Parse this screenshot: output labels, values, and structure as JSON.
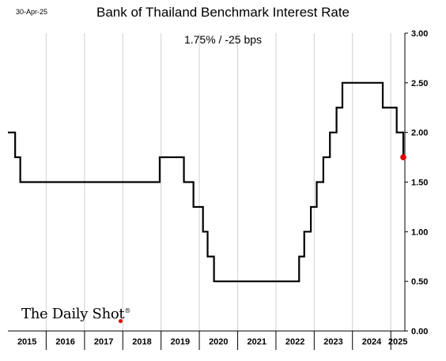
{
  "date_label": "30-Apr-25",
  "logo_text": "The Daily Shot",
  "logo_mark": "®",
  "colors": {
    "line": "#000000",
    "last_point": "#e00000",
    "grid": "#d0d0d0"
  },
  "chart_data": {
    "type": "line",
    "title": "Bank of Thailand Benchmark Interest Rate",
    "subtitle": "1.75%  /  -25 bps",
    "x_start": "2015-01-01",
    "x_end": "2025-05-15",
    "ylim": [
      0,
      3
    ],
    "yticks": [
      "0.00",
      "0.50",
      "1.00",
      "1.50",
      "2.00",
      "2.50",
      "3.00"
    ],
    "ytick_values": [
      0,
      0.5,
      1,
      1.5,
      2,
      2.5,
      3
    ],
    "y_axis_side": "right",
    "grid": "vertical at year boundaries",
    "year_labels": [
      "2015",
      "2016",
      "2017",
      "2018",
      "2019",
      "2020",
      "2021",
      "2022",
      "2023",
      "2024",
      "2025"
    ],
    "series": [
      {
        "step": "post",
        "points": [
          {
            "date": "2015-01-01",
            "value": 2.0
          },
          {
            "date": "2015-03-11",
            "value": 1.75
          },
          {
            "date": "2015-04-29",
            "value": 1.5
          },
          {
            "date": "2018-12-19",
            "value": 1.75
          },
          {
            "date": "2019-08-07",
            "value": 1.5
          },
          {
            "date": "2019-11-06",
            "value": 1.25
          },
          {
            "date": "2020-02-05",
            "value": 1.0
          },
          {
            "date": "2020-03-20",
            "value": 0.75
          },
          {
            "date": "2020-05-20",
            "value": 0.5
          },
          {
            "date": "2022-08-10",
            "value": 0.75
          },
          {
            "date": "2022-09-28",
            "value": 1.0
          },
          {
            "date": "2022-11-30",
            "value": 1.25
          },
          {
            "date": "2023-01-25",
            "value": 1.5
          },
          {
            "date": "2023-03-29",
            "value": 1.75
          },
          {
            "date": "2023-05-31",
            "value": 2.0
          },
          {
            "date": "2023-08-02",
            "value": 2.25
          },
          {
            "date": "2023-09-27",
            "value": 2.5
          },
          {
            "date": "2024-10-16",
            "value": 2.25
          },
          {
            "date": "2025-02-26",
            "value": 2.0
          },
          {
            "date": "2025-04-30",
            "value": 1.75
          }
        ]
      }
    ]
  }
}
